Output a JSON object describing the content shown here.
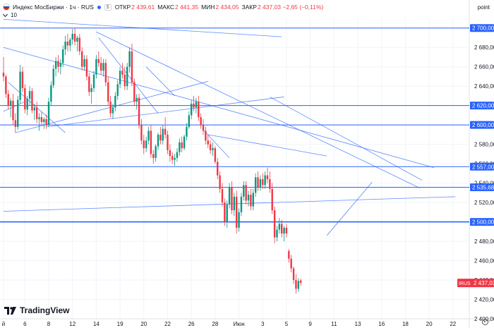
{
  "header": {
    "title": "Индекс МосБиржи · 1ч · RUS",
    "currency": "$",
    "ohlc": [
      {
        "key": "ОТКР",
        "value": "2 439,61"
      },
      {
        "key": "МАКС",
        "value": "2 441,35"
      },
      {
        "key": "МИН",
        "value": "2 434,05"
      },
      {
        "key": "ЗАКР",
        "value": "2 437,03 −2,65 (−0,11%)"
      }
    ],
    "indicator": "10"
  },
  "price_axis_unit": "point",
  "brand": "TradingView",
  "colors": {
    "up": "#089981",
    "down": "#f23645",
    "line": "#2962ff",
    "grid": "#f0f3fa"
  },
  "chart_data": {
    "type": "candlestick",
    "ylim": [
      2400,
      2710
    ],
    "y_ticks": [
      2400,
      2420,
      2440,
      2460,
      2480,
      2500,
      2520,
      2540,
      2560,
      2580,
      2600,
      2620,
      2640,
      2660,
      2680,
      2700
    ],
    "y_tick_labels": [
      "2 400,00",
      "2 420,00",
      "2 440,00",
      "2 460,00",
      "2 480,00",
      "2 500,00",
      "2 520,00",
      "2 540,00",
      "2 560,00",
      "2 580,00",
      "2 600,00",
      "2 620,00",
      "2 640,00",
      "2 660,00",
      "2 680,00",
      "2 700,00"
    ],
    "x_ticks": [
      {
        "label": "й",
        "idx": 0
      },
      {
        "label": "6",
        "idx": 9
      },
      {
        "label": "8",
        "idx": 19
      },
      {
        "label": "12",
        "idx": 29
      },
      {
        "label": "14",
        "idx": 39
      },
      {
        "label": "19",
        "idx": 49
      },
      {
        "label": "20",
        "idx": 59
      },
      {
        "label": "22",
        "idx": 69
      },
      {
        "label": "26",
        "idx": 79
      },
      {
        "label": "28",
        "idx": 89
      },
      {
        "label": "Июн",
        "idx": 99
      },
      {
        "label": "3",
        "idx": 109
      },
      {
        "label": "5",
        "idx": 119
      },
      {
        "label": "9",
        "idx": 129
      },
      {
        "label": "11",
        "idx": 139
      },
      {
        "label": "13",
        "idx": 149
      },
      {
        "label": "16",
        "idx": 159
      },
      {
        "label": "18",
        "idx": 169
      },
      {
        "label": "20",
        "idx": 179
      },
      {
        "label": "22",
        "idx": 189
      }
    ],
    "horizontal_levels": [
      {
        "value": 2700,
        "label": "2 700,00"
      },
      {
        "value": 2620,
        "label": "2 620,00"
      },
      {
        "value": 2600,
        "label": "2 600,00"
      },
      {
        "value": 2557,
        "label": "2 557,00"
      },
      {
        "value": 2535.68,
        "label": "2 535,68"
      },
      {
        "value": 2500,
        "label": "2 500,00",
        "bold": true
      }
    ],
    "last_price": {
      "value": 2437.03,
      "ticker": "IRUS",
      "label": "2 437,03"
    },
    "trend_lines": [
      [
        0,
        2709,
        117,
        2691
      ],
      [
        0,
        2680,
        181,
        2556
      ],
      [
        39,
        2696,
        175,
        2535
      ],
      [
        2,
        2644,
        26,
        2592
      ],
      [
        5,
        2592,
        86,
        2645
      ],
      [
        18,
        2598,
        118,
        2629
      ],
      [
        40,
        2690,
        65,
        2612
      ],
      [
        60,
        2660,
        72,
        2630
      ],
      [
        84,
        2595,
        95,
        2566
      ],
      [
        86,
        2590,
        136,
        2568
      ],
      [
        112,
        2629,
        176,
        2543
      ],
      [
        136,
        2486,
        155,
        2541
      ],
      [
        0,
        2511,
        190,
        2526
      ],
      [
        0,
        2614,
        9,
        2624
      ]
    ],
    "candles": [
      [
        2654,
        2670,
        2645,
        2650
      ],
      [
        2650,
        2652,
        2628,
        2632
      ],
      [
        2632,
        2636,
        2616,
        2620
      ],
      [
        2620,
        2628,
        2608,
        2625
      ],
      [
        2625,
        2632,
        2600,
        2605
      ],
      [
        2605,
        2612,
        2592,
        2598
      ],
      [
        2598,
        2630,
        2595,
        2626
      ],
      [
        2626,
        2662,
        2622,
        2655
      ],
      [
        2655,
        2660,
        2634,
        2638
      ],
      [
        2638,
        2642,
        2612,
        2616
      ],
      [
        2616,
        2630,
        2610,
        2627
      ],
      [
        2627,
        2640,
        2620,
        2635
      ],
      [
        2635,
        2638,
        2612,
        2615
      ],
      [
        2615,
        2622,
        2605,
        2618
      ],
      [
        2618,
        2624,
        2602,
        2606
      ],
      [
        2606,
        2612,
        2594,
        2608
      ],
      [
        2608,
        2614,
        2600,
        2603
      ],
      [
        2603,
        2608,
        2596,
        2606
      ],
      [
        2606,
        2611,
        2596,
        2600
      ],
      [
        2600,
        2628,
        2598,
        2624
      ],
      [
        2624,
        2645,
        2620,
        2641
      ],
      [
        2641,
        2662,
        2638,
        2658
      ],
      [
        2658,
        2670,
        2650,
        2666
      ],
      [
        2666,
        2672,
        2654,
        2660
      ],
      [
        2660,
        2668,
        2652,
        2664
      ],
      [
        2664,
        2682,
        2660,
        2678
      ],
      [
        2678,
        2692,
        2672,
        2686
      ],
      [
        2686,
        2694,
        2676,
        2682
      ],
      [
        2682,
        2690,
        2676,
        2688
      ],
      [
        2688,
        2699,
        2683,
        2694
      ],
      [
        2694,
        2700,
        2682,
        2686
      ],
      [
        2686,
        2692,
        2676,
        2690
      ],
      [
        2690,
        2694,
        2672,
        2676
      ],
      [
        2676,
        2680,
        2656,
        2660
      ],
      [
        2660,
        2672,
        2656,
        2668
      ],
      [
        2668,
        2672,
        2646,
        2650
      ],
      [
        2650,
        2654,
        2630,
        2634
      ],
      [
        2634,
        2642,
        2622,
        2638
      ],
      [
        2638,
        2656,
        2634,
        2652
      ],
      [
        2652,
        2672,
        2648,
        2668
      ],
      [
        2668,
        2676,
        2660,
        2664
      ],
      [
        2664,
        2670,
        2652,
        2656
      ],
      [
        2656,
        2668,
        2650,
        2664
      ],
      [
        2664,
        2668,
        2640,
        2644
      ],
      [
        2644,
        2650,
        2620,
        2624
      ],
      [
        2624,
        2630,
        2608,
        2612
      ],
      [
        2612,
        2622,
        2606,
        2618
      ],
      [
        2618,
        2634,
        2614,
        2630
      ],
      [
        2630,
        2646,
        2626,
        2642
      ],
      [
        2642,
        2660,
        2638,
        2656
      ],
      [
        2656,
        2664,
        2648,
        2652
      ],
      [
        2652,
        2660,
        2636,
        2640
      ],
      [
        2640,
        2664,
        2636,
        2660
      ],
      [
        2660,
        2680,
        2654,
        2676
      ],
      [
        2676,
        2684,
        2640,
        2644
      ],
      [
        2644,
        2648,
        2620,
        2624
      ],
      [
        2624,
        2632,
        2616,
        2628
      ],
      [
        2628,
        2632,
        2596,
        2600
      ],
      [
        2600,
        2606,
        2580,
        2584
      ],
      [
        2584,
        2590,
        2570,
        2576
      ],
      [
        2576,
        2588,
        2572,
        2584
      ],
      [
        2584,
        2598,
        2580,
        2594
      ],
      [
        2594,
        2600,
        2566,
        2570
      ],
      [
        2570,
        2574,
        2560,
        2566
      ],
      [
        2566,
        2580,
        2562,
        2578
      ],
      [
        2578,
        2592,
        2574,
        2590
      ],
      [
        2590,
        2598,
        2580,
        2584
      ],
      [
        2584,
        2600,
        2580,
        2596
      ],
      [
        2596,
        2608,
        2586,
        2590
      ],
      [
        2590,
        2594,
        2570,
        2574
      ],
      [
        2574,
        2580,
        2562,
        2568
      ],
      [
        2568,
        2572,
        2560,
        2564
      ],
      [
        2564,
        2570,
        2558,
        2566
      ],
      [
        2566,
        2576,
        2562,
        2572
      ],
      [
        2572,
        2586,
        2568,
        2582
      ],
      [
        2582,
        2588,
        2572,
        2576
      ],
      [
        2576,
        2590,
        2574,
        2588
      ],
      [
        2588,
        2602,
        2584,
        2598
      ],
      [
        2598,
        2614,
        2596,
        2610
      ],
      [
        2610,
        2626,
        2606,
        2622
      ],
      [
        2622,
        2630,
        2614,
        2618
      ],
      [
        2618,
        2628,
        2612,
        2624
      ],
      [
        2624,
        2630,
        2604,
        2608
      ],
      [
        2608,
        2612,
        2596,
        2600
      ],
      [
        2600,
        2606,
        2590,
        2594
      ],
      [
        2594,
        2598,
        2580,
        2584
      ],
      [
        2584,
        2590,
        2576,
        2580
      ],
      [
        2580,
        2584,
        2570,
        2574
      ],
      [
        2574,
        2582,
        2568,
        2576
      ],
      [
        2576,
        2578,
        2560,
        2562
      ],
      [
        2562,
        2566,
        2544,
        2548
      ],
      [
        2548,
        2552,
        2530,
        2534
      ],
      [
        2534,
        2540,
        2516,
        2520
      ],
      [
        2520,
        2524,
        2496,
        2500
      ],
      [
        2500,
        2522,
        2494,
        2518
      ],
      [
        2518,
        2540,
        2514,
        2536
      ],
      [
        2536,
        2542,
        2508,
        2512
      ],
      [
        2512,
        2530,
        2506,
        2526
      ],
      [
        2526,
        2532,
        2488,
        2494
      ],
      [
        2494,
        2514,
        2490,
        2510
      ],
      [
        2510,
        2530,
        2506,
        2526
      ],
      [
        2526,
        2542,
        2522,
        2538
      ],
      [
        2538,
        2542,
        2518,
        2522
      ],
      [
        2522,
        2532,
        2516,
        2528
      ],
      [
        2528,
        2534,
        2512,
        2516
      ],
      [
        2516,
        2534,
        2512,
        2530
      ],
      [
        2530,
        2550,
        2526,
        2546
      ],
      [
        2546,
        2552,
        2532,
        2536
      ],
      [
        2536,
        2548,
        2532,
        2544
      ],
      [
        2544,
        2550,
        2534,
        2538
      ],
      [
        2538,
        2552,
        2534,
        2548
      ],
      [
        2548,
        2556,
        2540,
        2544
      ],
      [
        2544,
        2552,
        2530,
        2534
      ],
      [
        2534,
        2540,
        2508,
        2512
      ],
      [
        2512,
        2516,
        2478,
        2484
      ],
      [
        2484,
        2496,
        2480,
        2492
      ],
      [
        2492,
        2504,
        2488,
        2498
      ],
      [
        2498,
        2502,
        2484,
        2488
      ],
      [
        2488,
        2496,
        2480,
        2494
      ],
      [
        2494,
        2498,
        2484,
        2488
      ],
      [
        2470,
        2472,
        2458,
        2462
      ],
      [
        2462,
        2466,
        2448,
        2452
      ],
      [
        2452,
        2454,
        2436,
        2440
      ],
      [
        2440,
        2446,
        2426,
        2431
      ],
      [
        2431,
        2442,
        2428,
        2439
      ],
      [
        2439.61,
        2441.35,
        2434.05,
        2437.03
      ]
    ],
    "candle_slots": 0
  }
}
